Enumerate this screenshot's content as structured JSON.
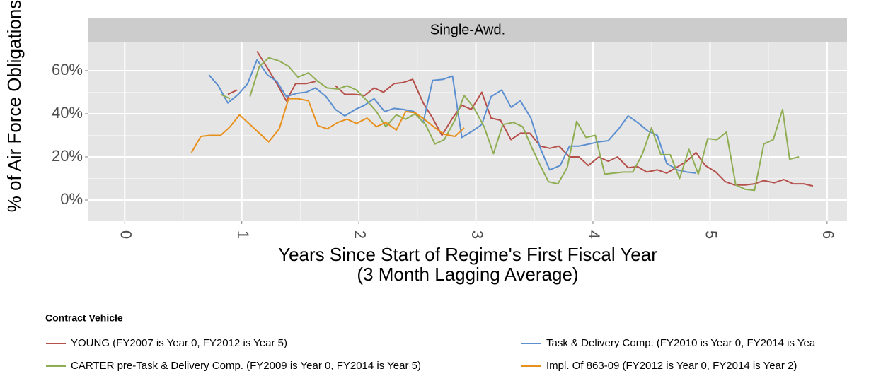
{
  "chart_data": {
    "type": "line",
    "facet": "Single-Awd.",
    "ylabel": "% of Air Force Obligations",
    "xlabel": [
      "Years Since Start of Regime's First Fiscal Year",
      "(3 Month Lagging Average)"
    ],
    "legend_title": "Contract Vehicle",
    "legend": "bottom",
    "grid": true,
    "xlim": [
      -0.31,
      6.17
    ],
    "ylim": [
      -9.5,
      73.1
    ],
    "xticks": [
      0,
      1,
      2,
      3,
      4,
      5,
      6
    ],
    "yticks": [
      {
        "value": 0,
        "label": "0%"
      },
      {
        "value": 20,
        "label": "20%"
      },
      {
        "value": 40,
        "label": "40%"
      },
      {
        "value": 60,
        "label": "60%"
      }
    ],
    "series": [
      {
        "name": "YOUNG (FY2007 is Year 0, FY2012 is Year 5)",
        "color": "#b5504b",
        "x": [
          0.88,
          0.96,
          1.05,
          1.13,
          1.21,
          1.3,
          1.38,
          1.46,
          1.55,
          1.63,
          1.71,
          1.8,
          1.88,
          1.96,
          2.05,
          2.13,
          2.21,
          2.3,
          2.38,
          2.46,
          2.55,
          2.63,
          2.71,
          2.8,
          2.88,
          2.96,
          3.05,
          3.13,
          3.21,
          3.3,
          3.38,
          3.46,
          3.55,
          3.63,
          3.71,
          3.8,
          3.88,
          3.96,
          4.05,
          4.13,
          4.21,
          4.3,
          4.38,
          4.46,
          4.55,
          4.63,
          4.71,
          4.8,
          4.88,
          4.96,
          5.05,
          5.13,
          5.21,
          5.3,
          5.38,
          5.46,
          5.55,
          5.63,
          5.71,
          5.8,
          5.88
        ],
        "values": [
          49,
          51,
          null,
          69,
          62,
          54,
          46,
          54,
          54,
          55,
          null,
          53,
          49,
          49,
          48.5,
          52,
          50,
          54,
          54.5,
          56,
          45,
          38,
          30,
          38,
          44,
          42,
          50,
          38,
          37,
          28,
          31,
          31,
          25,
          24,
          25,
          20,
          20,
          16,
          20,
          18,
          20,
          15,
          15.5,
          13,
          14,
          12.5,
          15,
          18,
          22,
          16,
          13,
          8.5,
          7,
          7,
          7.5,
          9,
          8,
          9.5,
          7.5,
          7.5,
          6.5
        ]
      },
      {
        "name": "Task & Delivery Comp. (FY2010 is Year 0, FY2014 is Yea",
        "color": "#5b8fd0",
        "x": [
          0.72,
          0.8,
          0.88,
          0.97,
          1.05,
          1.13,
          1.22,
          1.3,
          1.38,
          1.47,
          1.55,
          1.63,
          1.72,
          1.8,
          1.88,
          1.97,
          2.05,
          2.13,
          2.22,
          2.3,
          2.38,
          2.47,
          2.55,
          2.63,
          2.72,
          2.8,
          2.88,
          2.97,
          3.05,
          3.13,
          3.22,
          3.3,
          3.38,
          3.47,
          3.55,
          3.63,
          3.72,
          3.8,
          3.88,
          3.97,
          4.05,
          4.13,
          4.22,
          4.3,
          4.38,
          4.47,
          4.55,
          4.63,
          4.72,
          4.8,
          4.88
        ],
        "values": [
          58,
          53,
          45,
          49,
          54,
          65,
          58,
          55,
          48,
          49.5,
          50,
          52,
          48,
          42,
          39,
          42,
          44,
          47,
          41,
          42.5,
          42,
          41,
          36,
          55.5,
          56,
          57.5,
          29,
          32,
          35,
          48,
          51,
          43,
          46,
          38,
          24,
          14,
          16,
          25,
          25,
          26,
          27,
          27.5,
          33,
          39,
          36,
          32,
          30,
          17,
          14,
          13,
          12.5
        ]
      },
      {
        "name": "CARTER pre-Task & Delivery Comp. (FY2009 is Year 0, FY2014 is Year 5)",
        "color": "#8fad52",
        "x": [
          0.82,
          0.9,
          0.98,
          1.07,
          1.15,
          1.23,
          1.32,
          1.4,
          1.48,
          1.57,
          1.65,
          1.73,
          1.82,
          1.9,
          1.98,
          2.07,
          2.15,
          2.23,
          2.32,
          2.4,
          2.48,
          2.57,
          2.65,
          2.73,
          2.82,
          2.9,
          2.98,
          3.07,
          3.15,
          3.23,
          3.32,
          3.4,
          3.48,
          3.55,
          3.62,
          3.7,
          3.78,
          3.86,
          3.94,
          4.02,
          4.1,
          4.18,
          4.26,
          4.34,
          4.42,
          4.5,
          4.58,
          4.66,
          4.74,
          4.82,
          4.9,
          4.98,
          5.06,
          5.14,
          5.22,
          5.3,
          5.38,
          5.46,
          5.54,
          5.62,
          5.68,
          5.76,
          5.84
        ],
        "values": [
          49,
          47,
          null,
          48,
          62,
          66,
          64.5,
          62,
          57,
          59,
          55,
          52,
          51.5,
          53,
          51,
          46,
          41,
          34,
          39.5,
          37.5,
          40,
          35,
          26,
          28,
          37,
          48.5,
          43,
          34,
          21.5,
          35,
          36,
          34,
          24,
          16,
          8.5,
          7.5,
          15,
          36.5,
          29,
          30,
          12,
          12.5,
          13,
          13,
          21,
          33.5,
          21,
          21,
          10,
          23.5,
          12,
          28.5,
          28,
          31.5,
          7,
          5,
          4.5,
          26,
          28,
          42,
          19,
          20,
          null
        ]
      },
      {
        "name": "Impl. Of 863-09 (FY2012 is Year 0, FY2014 is Year 2)",
        "color": "#e8901c",
        "x": [
          0.57,
          0.65,
          0.73,
          0.82,
          0.9,
          0.98,
          1.07,
          1.15,
          1.23,
          1.32,
          1.4,
          1.48,
          1.57,
          1.65,
          1.73,
          1.82,
          1.9,
          1.98,
          2.07,
          2.15,
          2.23,
          2.32,
          2.4,
          2.48,
          2.57,
          2.65,
          2.73,
          2.82,
          2.9
        ],
        "values": [
          22,
          29.5,
          30,
          30,
          34,
          39.5,
          35,
          31,
          27,
          33,
          47,
          47,
          46,
          34.5,
          33,
          36,
          37.5,
          35.5,
          38,
          34,
          36,
          32.5,
          41,
          40.5,
          37,
          33.5,
          30.5,
          29.5,
          33.5
        ]
      }
    ]
  }
}
